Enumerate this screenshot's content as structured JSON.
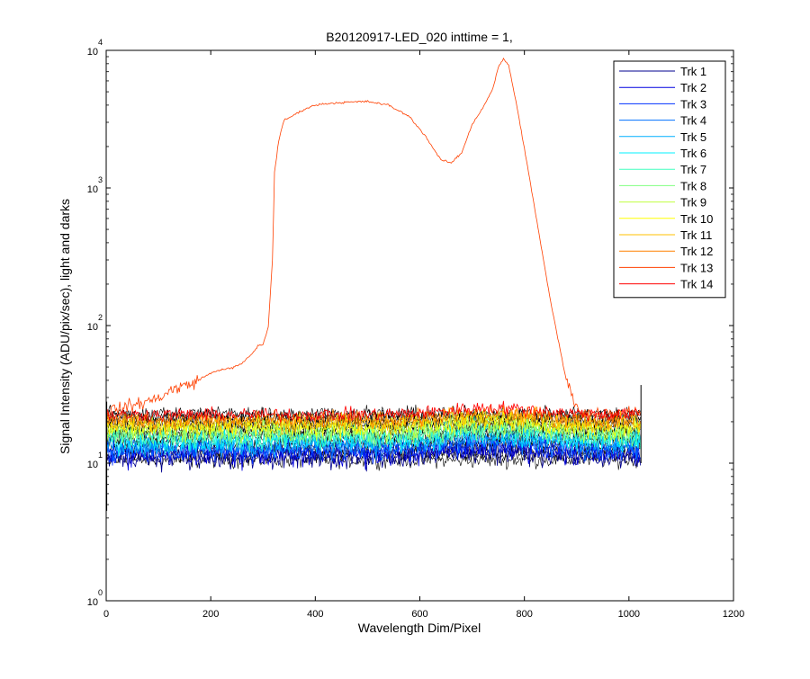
{
  "chart_data": {
    "type": "line",
    "title": "B20120917-LED_020 inttime = 1,",
    "xlabel": "Wavelength Dim/Pixel",
    "ylabel": "Signal Intensity (ADU/pix/sec), light and darks",
    "xlim": [
      0,
      1200
    ],
    "ylim": [
      1,
      10000
    ],
    "yscale": "log",
    "x_ticks": [
      0,
      200,
      400,
      600,
      800,
      1000,
      1200
    ],
    "x_tick_labels": [
      "0",
      "200",
      "400",
      "600",
      "800",
      "1000",
      "1200"
    ],
    "y_ticks": [
      1,
      10,
      100,
      1000,
      10000
    ],
    "y_tick_bases": [
      "10",
      "10",
      "10",
      "10",
      "10"
    ],
    "y_tick_exponents": [
      "0",
      "1",
      "2",
      "3",
      "4"
    ],
    "grid": false,
    "legend_position": "top-right",
    "series": [
      {
        "name": "Trk 1",
        "color": "#00008f",
        "baseline": 11.0,
        "noise": 0.07
      },
      {
        "name": "Trk 2",
        "color": "#0000df",
        "baseline": 11.6,
        "noise": 0.07
      },
      {
        "name": "Trk 3",
        "color": "#0030ff",
        "baseline": 12.3,
        "noise": 0.07
      },
      {
        "name": "Trk 4",
        "color": "#0070ff",
        "baseline": 13.0,
        "noise": 0.07
      },
      {
        "name": "Trk 5",
        "color": "#00b0ff",
        "baseline": 13.8,
        "noise": 0.07
      },
      {
        "name": "Trk 6",
        "color": "#00f0ff",
        "baseline": 14.6,
        "noise": 0.07
      },
      {
        "name": "Trk 7",
        "color": "#40ffbf",
        "baseline": 15.5,
        "noise": 0.07
      },
      {
        "name": "Trk 8",
        "color": "#80ff80",
        "baseline": 16.4,
        "noise": 0.07
      },
      {
        "name": "Trk 9",
        "color": "#c0ff40",
        "baseline": 17.4,
        "noise": 0.07
      },
      {
        "name": "Trk 10",
        "color": "#ffff00",
        "baseline": 18.4,
        "noise": 0.06
      },
      {
        "name": "Trk 11",
        "color": "#ffc000",
        "baseline": 19.5,
        "noise": 0.06
      },
      {
        "name": "Trk 12",
        "color": "#ff8000",
        "baseline": 20.6,
        "noise": 0.05
      },
      {
        "name": "Trk 13",
        "color": "#ff4000",
        "baseline": 21.5,
        "noise": 0.04,
        "profile_x": [
          0,
          30,
          60,
          80,
          100,
          120,
          140,
          160,
          180,
          200,
          220,
          240,
          260,
          280,
          290,
          300,
          310,
          318,
          322,
          330,
          340,
          360,
          380,
          400,
          420,
          460,
          500,
          540,
          580,
          610,
          640,
          660,
          680,
          700,
          720,
          740,
          750,
          760,
          770,
          790,
          820,
          850,
          880,
          900,
          910,
          930,
          1023
        ],
        "profile_y": [
          24,
          25,
          27,
          28,
          30,
          33,
          36,
          37,
          41,
          45,
          48,
          49,
          53,
          63,
          71,
          73,
          97,
          300,
          1300,
          2200,
          3100,
          3400,
          3750,
          4000,
          4100,
          4200,
          4250,
          4000,
          3300,
          2400,
          1600,
          1520,
          1800,
          2900,
          3800,
          5300,
          7500,
          8700,
          7800,
          3200,
          700,
          150,
          40,
          26,
          24,
          23,
          24
        ]
      },
      {
        "name": "Trk 14",
        "color": "#ff0000",
        "baseline": 22.5,
        "noise": 0.04
      }
    ]
  }
}
